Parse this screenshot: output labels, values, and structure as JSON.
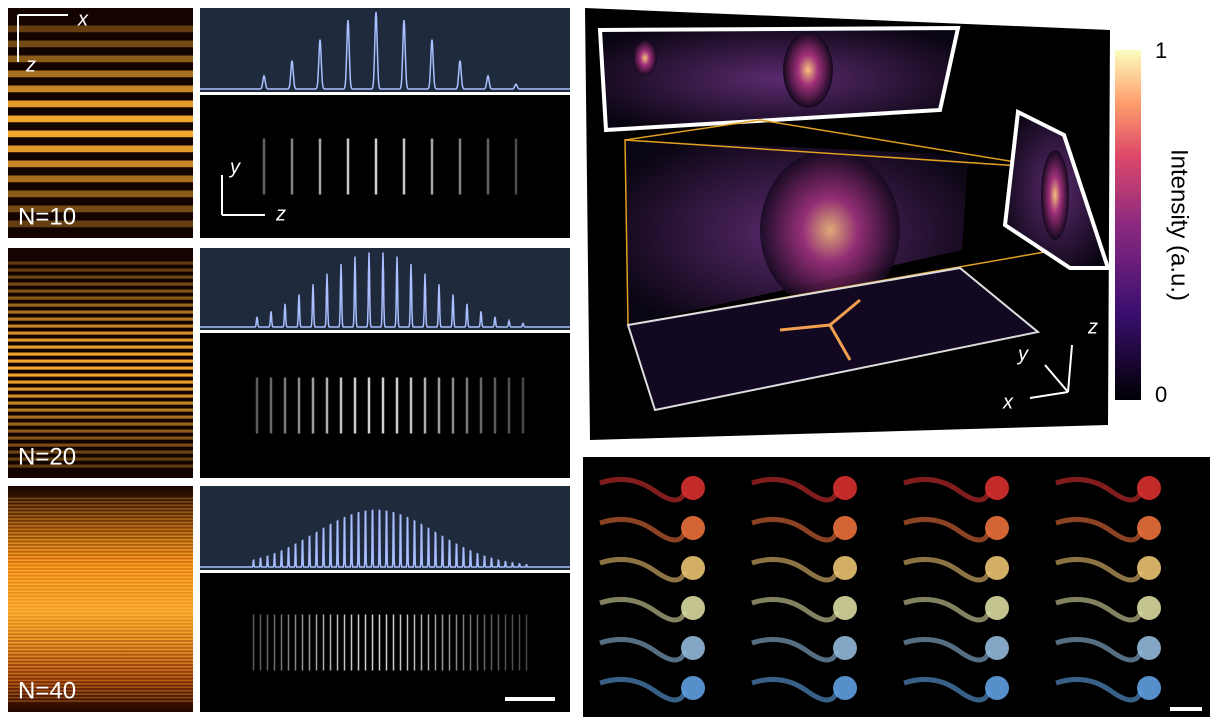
{
  "panel_a": {
    "rows": [
      {
        "label": "N=10",
        "axes": {
          "x": "x",
          "z": "z"
        },
        "inset_axes": {
          "y": "y",
          "z": "z"
        }
      },
      {
        "label": "N=20"
      },
      {
        "label": "N=40"
      }
    ]
  },
  "panel_b": {
    "colorbar": {
      "max": 1,
      "min": 0,
      "label": "Intensity (a.u.)"
    },
    "axes": {
      "z": "z",
      "y": "y",
      "x": "x"
    }
  }
}
